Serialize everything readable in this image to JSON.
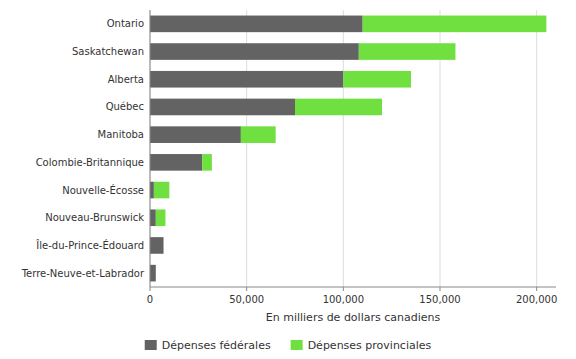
{
  "chart_data": {
    "type": "bar",
    "orientation": "horizontal",
    "stacked": true,
    "x_label": "En milliers de dollars canadiens",
    "categories": [
      "Ontario",
      "Saskatchewan",
      "Alberta",
      "Québec",
      "Manitoba",
      "Colombie-Britannique",
      "Nouvelle-Écosse",
      "Nouveau-Brunswick",
      "Île-du-Prince-Édouard",
      "Terre-Neuve-et-Labrador"
    ],
    "series": [
      {
        "name": "Dépenses fédérales",
        "color": "#636363",
        "values": [
          110000,
          108000,
          100000,
          75000,
          47000,
          27000,
          2000,
          3000,
          7000,
          3000
        ]
      },
      {
        "name": "Dépenses provinciales",
        "color": "#70E040",
        "values": [
          95000,
          50000,
          35000,
          45000,
          18000,
          5000,
          8000,
          5000,
          0,
          0
        ]
      }
    ],
    "xlim": [
      0,
      210000
    ],
    "xticks": [
      0,
      {
        "value": 50000,
        "label": "50,000"
      },
      {
        "value": 100000,
        "label": "100,000"
      },
      {
        "value": 150000,
        "label": "150,000"
      },
      {
        "value": 200000,
        "label": "200,000"
      }
    ],
    "grid": true,
    "legend": "bottom"
  }
}
